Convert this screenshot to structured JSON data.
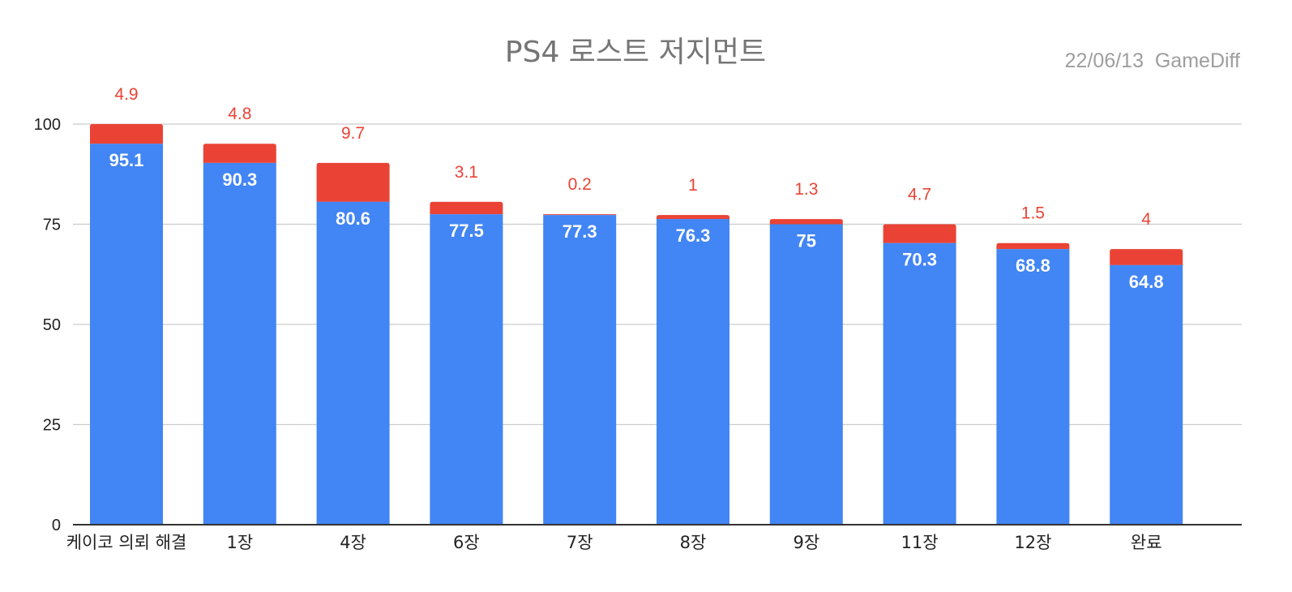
{
  "chart_data": {
    "type": "bar",
    "stacked": true,
    "title": "PS4 로스트 저지먼트",
    "subtitle": "22/06/13  GameDiff",
    "xlabel": "",
    "ylabel": "",
    "ylim": [
      0,
      100
    ],
    "yticks": [
      0,
      25,
      50,
      75,
      100
    ],
    "grid": true,
    "legend": "none",
    "categories": [
      "케이코 의뢰 해결",
      "1장",
      "4장",
      "6장",
      "7장",
      "8장",
      "9장",
      "11장",
      "12장",
      "완료"
    ],
    "series": [
      {
        "color": "#4285f4",
        "values": [
          95.1,
          90.3,
          80.6,
          77.5,
          77.3,
          76.3,
          75,
          70.3,
          68.8,
          64.8
        ]
      },
      {
        "color": "#ea4335",
        "values": [
          4.9,
          4.8,
          9.7,
          3.1,
          0.2,
          1,
          1.3,
          4.7,
          1.5,
          4
        ]
      }
    ]
  }
}
